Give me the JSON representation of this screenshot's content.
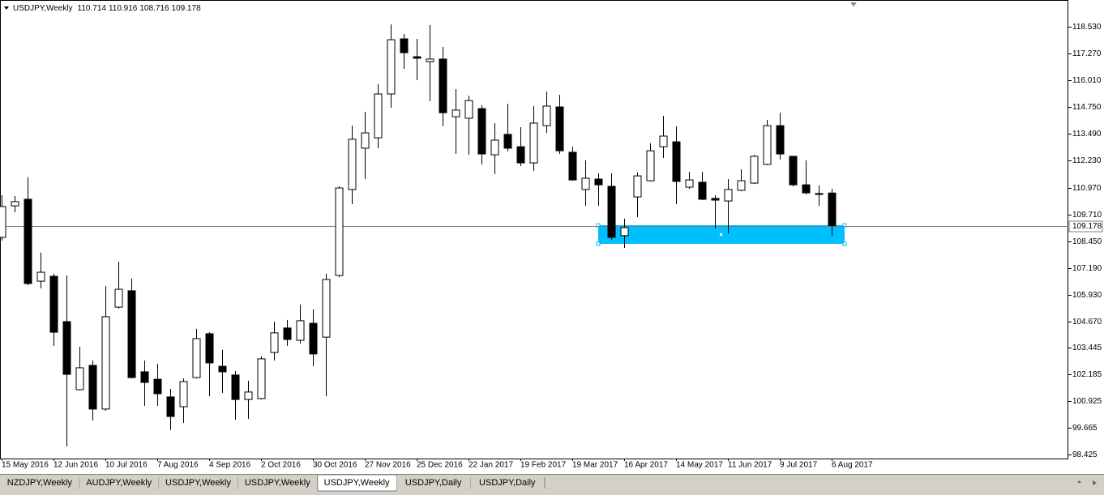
{
  "chart_data": {
    "type": "candlestick",
    "title": "USDJPY,Weekly",
    "categories": [
      "15 May 2016",
      null,
      null,
      null,
      "12 Jun 2016",
      null,
      null,
      null,
      "10 Jul 2016",
      null,
      null,
      null,
      "7 Aug 2016",
      null,
      null,
      null,
      "4 Sep 2016",
      null,
      null,
      null,
      "2 Oct 2016",
      null,
      null,
      null,
      "30 Oct 2016",
      null,
      null,
      null,
      "27 Nov 2016",
      null,
      null,
      null,
      "25 Dec 2016",
      null,
      null,
      null,
      "22 Jan 2017",
      null,
      null,
      null,
      "19 Feb 2017",
      null,
      null,
      null,
      "19 Mar 2017",
      null,
      null,
      null,
      "16 Apr 2017",
      null,
      null,
      null,
      "14 May 2017",
      null,
      null,
      null,
      "11 Jun 2017",
      null,
      null,
      null,
      "9 Jul 2017",
      null,
      null,
      null,
      "6 Aug 2017"
    ],
    "open": [
      108.63,
      110.11,
      110.42,
      106.57,
      106.8,
      104.67,
      101.47,
      102.61,
      100.56,
      105.35,
      106.12,
      102.31,
      101.96,
      101.13,
      100.67,
      102.04,
      104.1,
      102.57,
      102.16,
      101.01,
      101.05,
      103.22,
      104.37,
      103.79,
      104.59,
      103.94,
      106.84,
      110.88,
      112.82,
      113.31,
      115.37,
      117.96,
      117.12,
      116.89,
      117.01,
      114.3,
      114.23,
      114.68,
      112.51,
      113.47,
      112.89,
      112.13,
      113.88,
      114.76,
      112.63,
      110.88,
      111.37,
      111.03,
      108.71,
      110.53,
      111.29,
      112.89,
      113.12,
      110.99,
      111.22,
      110.46,
      110.34,
      110.84,
      111.18,
      112.06,
      113.88,
      112.44,
      111.1,
      110.69,
      110.714
    ],
    "high": [
      110.61,
      110.57,
      111.45,
      107.91,
      106.92,
      106.84,
      103.49,
      102.84,
      106.34,
      107.49,
      106.69,
      102.84,
      102.69,
      101.51,
      102.0,
      104.33,
      104.17,
      103.34,
      102.35,
      101.89,
      103.03,
      104.67,
      104.75,
      105.47,
      105.24,
      106.92,
      111.03,
      113.88,
      114.53,
      115.83,
      118.64,
      118.19,
      117.96,
      118.61,
      117.58,
      115.6,
      115.29,
      114.84,
      114.0,
      114.91,
      113.81,
      114.8,
      115.48,
      115.33,
      112.89,
      112.25,
      111.64,
      111.64,
      109.51,
      111.68,
      113.05,
      114.34,
      113.85,
      111.71,
      111.71,
      110.61,
      111.37,
      111.83,
      112.51,
      114.15,
      114.49,
      112.44,
      112.25,
      111.07,
      110.916
    ],
    "low": [
      108.48,
      109.81,
      106.38,
      106.23,
      103.53,
      98.8,
      101.43,
      100.02,
      100.48,
      105.28,
      102.0,
      100.71,
      100.71,
      99.57,
      99.91,
      102.0,
      101.17,
      101.32,
      100.06,
      100.1,
      101.01,
      102.84,
      103.53,
      103.64,
      102.57,
      101.17,
      106.76,
      110.19,
      111.37,
      112.82,
      114.72,
      116.55,
      116.02,
      115.03,
      113.85,
      112.55,
      112.51,
      112.06,
      111.6,
      112.67,
      111.98,
      111.75,
      113.54,
      112.55,
      111.29,
      110.11,
      110.11,
      108.52,
      108.13,
      109.58,
      111.26,
      112.36,
      110.19,
      110.91,
      110.38,
      109.05,
      108.82,
      110.8,
      111.14,
      112.02,
      112.29,
      111.03,
      110.65,
      110.11,
      108.716
    ],
    "close": [
      110.08,
      110.31,
      106.46,
      106.99,
      104.17,
      102.19,
      102.5,
      100.56,
      104.9,
      106.19,
      102.04,
      101.81,
      101.28,
      100.21,
      101.85,
      103.87,
      102.73,
      102.31,
      101.01,
      101.36,
      102.92,
      104.14,
      103.83,
      104.71,
      103.15,
      106.65,
      110.95,
      113.24,
      113.54,
      115.37,
      117.92,
      117.31,
      117.05,
      117.01,
      114.49,
      114.61,
      115.06,
      112.55,
      113.2,
      112.82,
      112.13,
      114.0,
      114.8,
      112.7,
      111.33,
      111.41,
      111.1,
      108.63,
      109.09,
      111.52,
      112.7,
      113.39,
      111.26,
      111.33,
      110.42,
      110.38,
      110.88,
      111.29,
      112.44,
      113.88,
      112.55,
      111.1,
      110.72,
      110.65,
      109.178
    ],
    "ylim": [
      98.233,
      119.787
    ],
    "yticks": [
      {
        "value": 118.53,
        "label": "118.530"
      },
      {
        "value": 117.27,
        "label": "117.270"
      },
      {
        "value": 116.01,
        "label": "116.010"
      },
      {
        "value": 114.75,
        "label": "114.750"
      },
      {
        "value": 113.49,
        "label": "113.490"
      },
      {
        "value": 112.23,
        "label": "112.230"
      },
      {
        "value": 110.97,
        "label": "110.970"
      },
      {
        "value": 109.71,
        "label": "109.710"
      },
      {
        "value": 108.45,
        "label": "108.450"
      },
      {
        "value": 107.19,
        "label": "107.190"
      },
      {
        "value": 105.93,
        "label": "105.930"
      },
      {
        "value": 104.67,
        "label": "104.670"
      },
      {
        "value": 103.445,
        "label": "103.445"
      },
      {
        "value": 102.185,
        "label": "102.185"
      },
      {
        "value": 100.925,
        "label": "100.925"
      },
      {
        "value": 99.665,
        "label": "99.665"
      },
      {
        "value": 98.425,
        "label": "98.425"
      }
    ],
    "up_color": "#ffffff",
    "down_color": "#000000",
    "grid": false
  },
  "tabs": [
    "NZDJPY,Weekly",
    "AUDJPY,Weekly",
    "USDJPY,Weekly",
    "USDJPY,Weekly",
    "USDJPY,Weekly",
    "USDJPY,Daily",
    "USDJPY,Daily"
  ],
  "active_tab": 4
}
